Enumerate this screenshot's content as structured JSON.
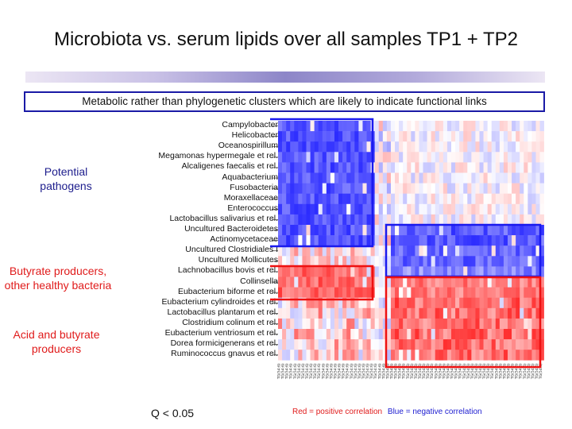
{
  "slide": {
    "title": "Microbiota vs. serum lipids over all samples  TP1 + TP2",
    "subtitle": "Metabolic rather than phylogenetic clusters which are likely to indicate functional links",
    "q_value": "Q < 0.05",
    "legend_red": "Red  = positive correlation",
    "legend_blue": "Blue  = negative correlation"
  },
  "groups": {
    "pathogens": "Potential pathogens",
    "butyrate": "Butyrate producers, other healthy bacteria",
    "acid": "Acid and butyrate producers"
  },
  "rows": [
    "Campylobacter",
    "Helicobacter",
    "Oceanospirillum",
    "Megamonas hypermegale et rel.",
    "Alcaligenes faecalis et rel.",
    "Aquabacterium",
    "Fusobacteria",
    "Moraxellaceae",
    "Enterococcus",
    "Lactobacillus salivarius et rel.",
    "Uncultured Bacteroidetes",
    "Actinomycetaceae",
    "Uncultured Clostridiales I",
    "Uncultured Mollicutes",
    "Lachnobacillus bovis et rel.",
    "Collinsella",
    "Eubacterium biforme et rel.",
    "Eubacterium cylindroides et rel.",
    "Lactobacillus plantarum et rel.",
    "Clostridium colinum et rel.",
    "Eubacterium ventriosum et rel.",
    "Dorea formicigenerans et rel.",
    "Ruminococcus gnavus et rel."
  ],
  "colors": {
    "blue_box": "#1a1aee",
    "red_box": "#ee1111",
    "red_text": "#e01b1b",
    "blue_text": "#1c1c8c"
  }
}
